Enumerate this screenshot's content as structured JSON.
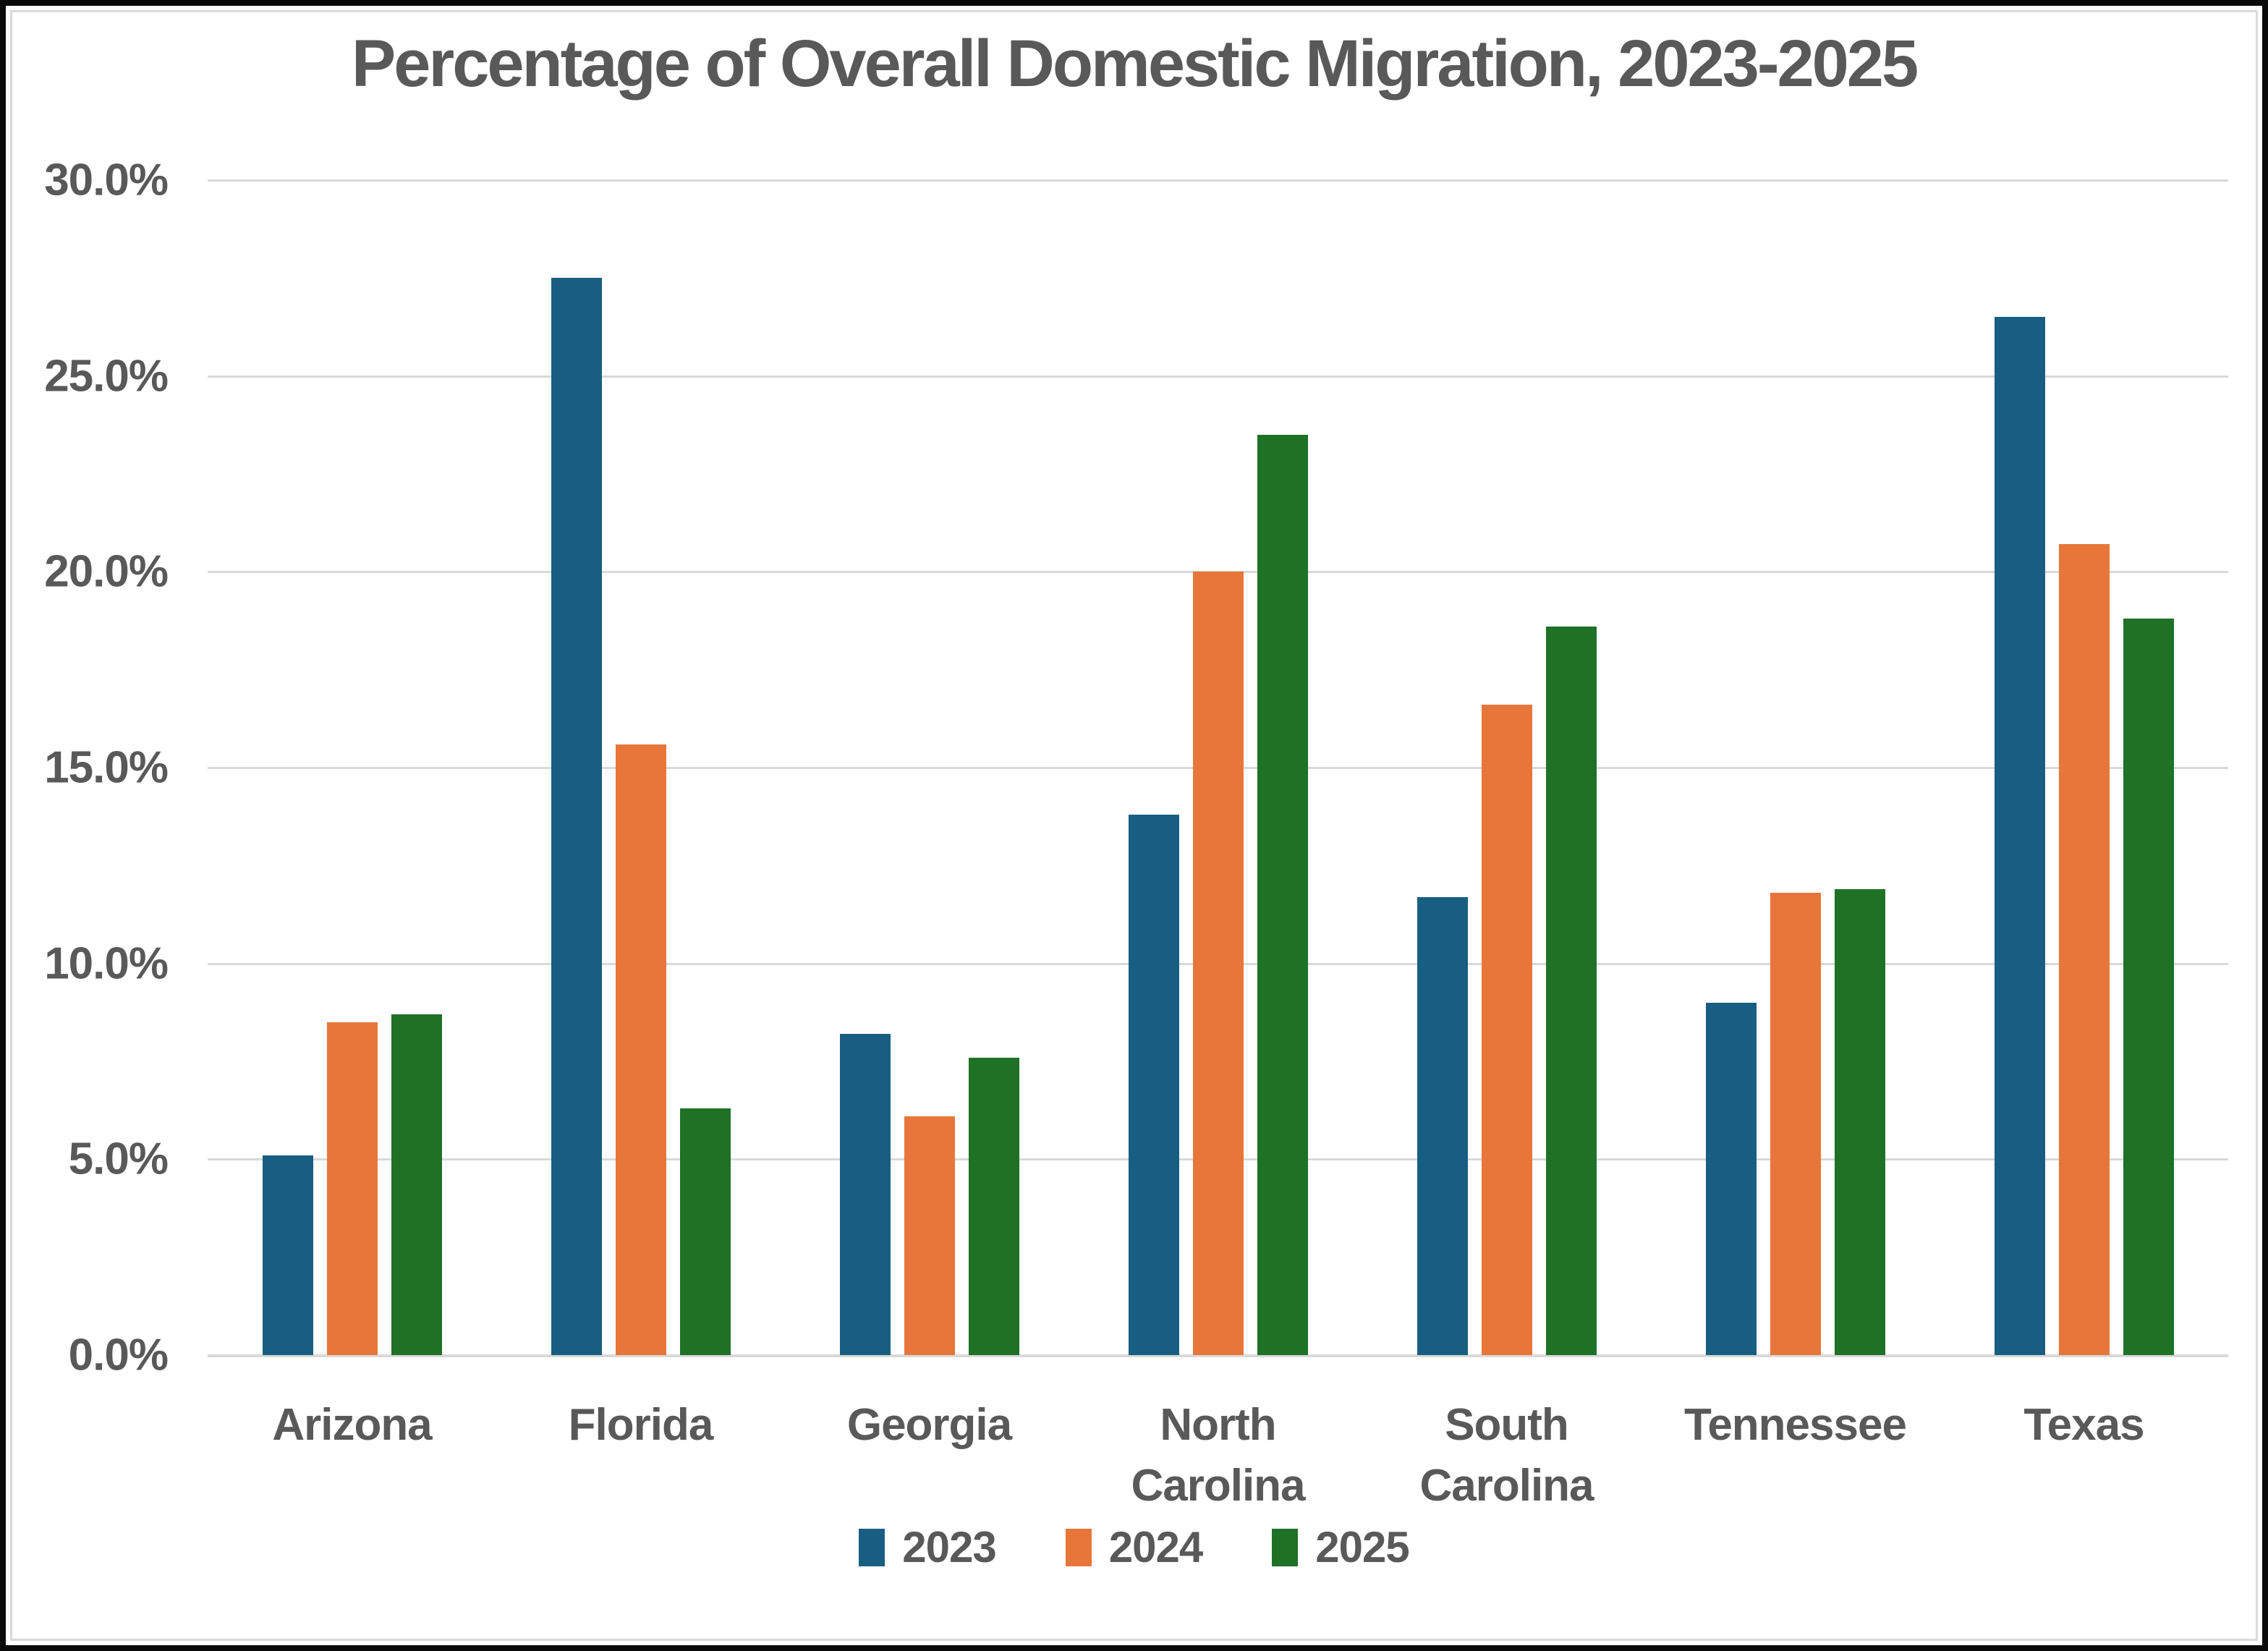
{
  "chart_data": {
    "type": "bar",
    "title": "Percentage of Overall Domestic Migration, 2023-2025",
    "categories": [
      "Arizona",
      "Florida",
      "Georgia",
      "North\nCarolina",
      "South\nCarolina",
      "Tennessee",
      "Texas"
    ],
    "series": [
      {
        "name": "2023",
        "color": "#185E82",
        "values": [
          5.1,
          27.5,
          8.2,
          13.8,
          11.7,
          9.0,
          26.5
        ]
      },
      {
        "name": "2024",
        "color": "#E8763A",
        "values": [
          8.5,
          15.6,
          6.1,
          20.0,
          16.6,
          11.8,
          20.7
        ]
      },
      {
        "name": "2025",
        "color": "#1E7125",
        "values": [
          8.7,
          6.3,
          7.6,
          23.5,
          18.6,
          11.9,
          18.8
        ]
      }
    ],
    "y_axis": {
      "min": 0,
      "max": 30,
      "tick_step": 5,
      "tick_labels": [
        "0.0%",
        "5.0%",
        "10.0%",
        "15.0%",
        "20.0%",
        "25.0%",
        "30.0%"
      ]
    },
    "grid": true,
    "legend_position": "bottom",
    "colors": {
      "text": "#595959",
      "gridline": "#D9D9D9",
      "frame": "#0A0A0A",
      "background": "#FFFFFF"
    }
  }
}
